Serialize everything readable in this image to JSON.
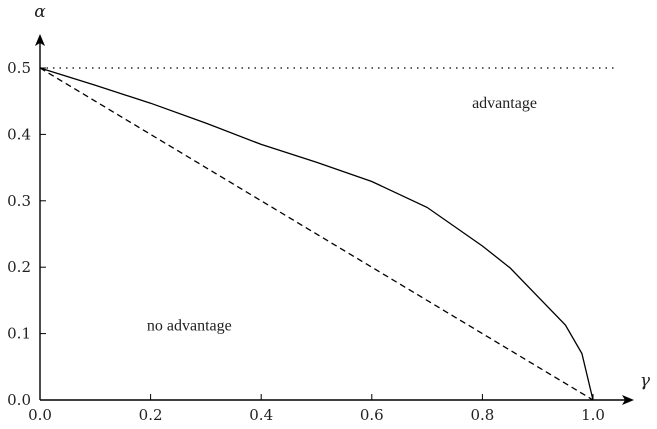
{
  "chart_data": {
    "type": "line",
    "xlabel": "γ",
    "ylabel": "α",
    "xlim": [
      0.0,
      1.0
    ],
    "ylim": [
      0.0,
      0.5
    ],
    "x_ticks": [
      "0.0",
      "0.2",
      "0.4",
      "0.6",
      "0.8",
      "1.0"
    ],
    "y_ticks": [
      "0.0",
      "0.1",
      "0.2",
      "0.3",
      "0.4",
      "0.5"
    ],
    "grid": false,
    "series": [
      {
        "style": "solid",
        "x": [
          0.0,
          0.1,
          0.2,
          0.3,
          0.4,
          0.5,
          0.6,
          0.7,
          0.8,
          0.85,
          0.9,
          0.95,
          0.98,
          1.0
        ],
        "y": [
          0.5,
          0.474,
          0.447,
          0.417,
          0.385,
          0.358,
          0.329,
          0.29,
          0.232,
          0.199,
          0.156,
          0.113,
          0.07,
          0.0
        ]
      },
      {
        "style": "dashed",
        "x": [
          0.0,
          1.0
        ],
        "y": [
          0.5,
          0.0
        ]
      },
      {
        "style": "dotted",
        "x": [
          0.0,
          1.04
        ],
        "y": [
          0.5,
          0.5
        ]
      }
    ],
    "annotations": [
      {
        "text": "advantage",
        "x": 0.84,
        "y": 0.44
      },
      {
        "text": "no advantage",
        "x": 0.27,
        "y": 0.105
      }
    ]
  }
}
